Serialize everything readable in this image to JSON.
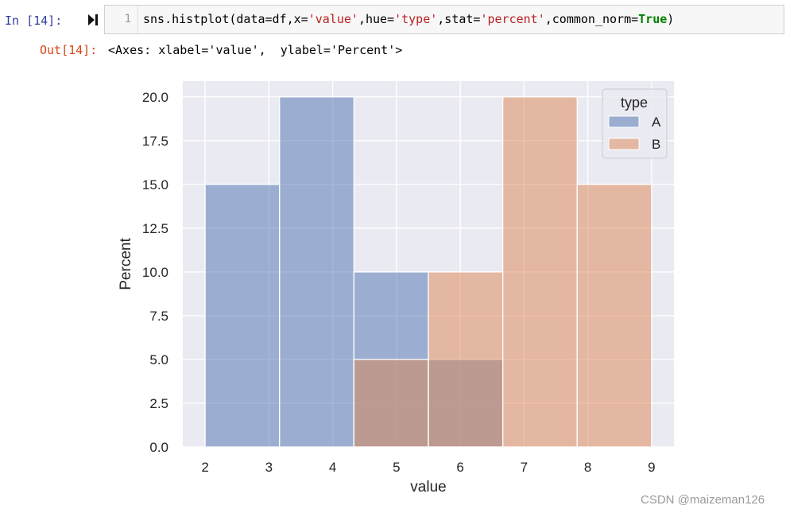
{
  "cell": {
    "in_prompt": "In  [14]:",
    "run_icon": "run-cell-icon",
    "line_number": "1",
    "code": {
      "p1": "sns.histplot(data=df,x=",
      "s1": "'value'",
      "p2": ",hue=",
      "s2": "'type'",
      "p3": ",stat=",
      "s3": "'percent'",
      "p4": ",common_norm=",
      "kw": "True",
      "p5": ")"
    }
  },
  "output": {
    "prompt": "Out[14]:",
    "text": "<Axes: xlabel='value',  ylabel='Percent'>"
  },
  "chart_data": {
    "type": "bar",
    "title": "",
    "xlabel": "value",
    "ylabel": "Percent",
    "xlim": [
      1.65,
      9.35
    ],
    "ylim": [
      0,
      20.9
    ],
    "x_ticks": [
      "2",
      "3",
      "4",
      "5",
      "6",
      "7",
      "8",
      "9"
    ],
    "y_ticks": [
      "0.0",
      "2.5",
      "5.0",
      "7.5",
      "10.0",
      "12.5",
      "15.0",
      "17.5",
      "20.0"
    ],
    "bin_edges": [
      2.0,
      3.1667,
      4.3333,
      5.5,
      6.6667,
      7.8333,
      9.0
    ],
    "grid": true,
    "legend_title": "type",
    "legend_position": "top-right",
    "series": [
      {
        "name": "A",
        "color": "#4c72b0",
        "values": [
          15,
          20,
          10,
          5,
          0,
          0
        ]
      },
      {
        "name": "B",
        "color": "#dd8452",
        "values": [
          0,
          0,
          5,
          10,
          20,
          15
        ]
      }
    ]
  },
  "watermark": "CSDN @maizeman126"
}
